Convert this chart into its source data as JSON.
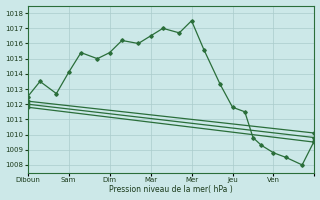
{
  "background_color": "#cce8e8",
  "grid_color": "#aacccc",
  "line_color": "#2a6e3a",
  "xlabel": "Pression niveau de la mer( hPa )",
  "xlabels": [
    "Diboun",
    "Sam",
    "Dim",
    "Mar",
    "Mer",
    "Jeu",
    "Ven"
  ],
  "yticks": [
    1008,
    1009,
    1010,
    1011,
    1012,
    1013,
    1014,
    1015,
    1016,
    1017,
    1018
  ],
  "ylim": [
    1007.5,
    1018.5
  ],
  "xlim": [
    0,
    7.0
  ],
  "series1_x": [
    0.0,
    0.3,
    0.7,
    1.0,
    1.3,
    1.7,
    2.0,
    2.3,
    2.7,
    3.0,
    3.3,
    3.7,
    4.0,
    4.3,
    4.7,
    5.0,
    5.3,
    5.5,
    5.7,
    6.0,
    6.3,
    6.7,
    7.0
  ],
  "series1_y": [
    1012.5,
    1013.5,
    1012.7,
    1014.1,
    1015.4,
    1015.0,
    1015.4,
    1016.2,
    1016.0,
    1016.5,
    1017.0,
    1016.7,
    1017.5,
    1015.6,
    1013.3,
    1011.8,
    1011.5,
    1009.8,
    1009.3,
    1008.8,
    1008.5,
    1008.0,
    1009.6
  ],
  "series2_x": [
    0.0,
    7.0
  ],
  "series2_y": [
    1011.8,
    1009.5
  ],
  "series3_x": [
    0.0,
    7.0
  ],
  "series3_y": [
    1012.0,
    1009.8
  ],
  "series4_x": [
    0.0,
    7.0
  ],
  "series4_y": [
    1012.2,
    1010.1
  ],
  "xtick_positions": [
    0,
    1,
    2,
    3,
    4,
    5,
    6,
    7
  ]
}
